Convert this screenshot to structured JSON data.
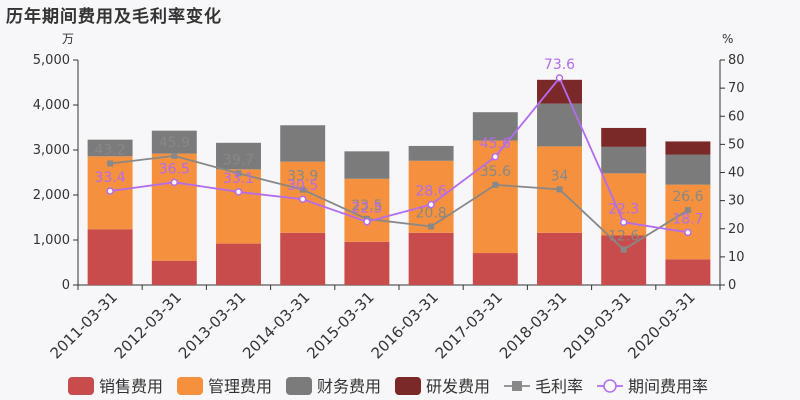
{
  "title": "历年期间费用及毛利率变化",
  "chart_data": {
    "type": "bar",
    "stacked": true,
    "title": "历年期间费用及毛利率变化",
    "left_unit": "万",
    "right_unit": "%",
    "categories": [
      "2011-03-31",
      "2012-03-31",
      "2013-03-31",
      "2014-03-31",
      "2015-03-31",
      "2016-03-31",
      "2017-03-31",
      "2018-03-31",
      "2019-03-31",
      "2020-03-31"
    ],
    "ylim_left": [
      0,
      5000
    ],
    "yticks_left": [
      "0",
      "1,000",
      "2,000",
      "3,000",
      "4,000",
      "5,000"
    ],
    "ylim_right": [
      0,
      80
    ],
    "yticks_right": [
      "0",
      "10",
      "20",
      "30",
      "40",
      "50",
      "60",
      "70",
      "80"
    ],
    "series": [
      {
        "name": "销售费用",
        "type": "bar",
        "color": "#c94c4c",
        "values": [
          1240,
          540,
          920,
          1160,
          960,
          1160,
          710,
          1160,
          1100,
          570
        ]
      },
      {
        "name": "管理费用",
        "type": "bar",
        "color": "#f5913e",
        "values": [
          1620,
          2380,
          1650,
          1580,
          1400,
          1600,
          2500,
          1920,
          1380,
          1660
        ]
      },
      {
        "name": "财务费用",
        "type": "bar",
        "color": "#7b7b7b",
        "values": [
          370,
          510,
          590,
          810,
          610,
          330,
          630,
          950,
          590,
          670
        ]
      },
      {
        "name": "研发费用",
        "type": "bar",
        "color": "#7a2828",
        "values": [
          0,
          0,
          0,
          0,
          0,
          0,
          0,
          530,
          420,
          290
        ]
      },
      {
        "name": "毛利率",
        "type": "line",
        "axis": "right",
        "color": "#888888",
        "values": [
          43.2,
          45.9,
          39.7,
          33.9,
          23.5,
          20.8,
          35.6,
          34,
          12.6,
          26.6
        ]
      },
      {
        "name": "期间费用率",
        "type": "line",
        "axis": "right",
        "color": "#b36cf0",
        "values": [
          33.4,
          36.5,
          33.1,
          30.5,
          22.5,
          28.6,
          45.6,
          73.6,
          22.3,
          18.7
        ]
      }
    ]
  }
}
